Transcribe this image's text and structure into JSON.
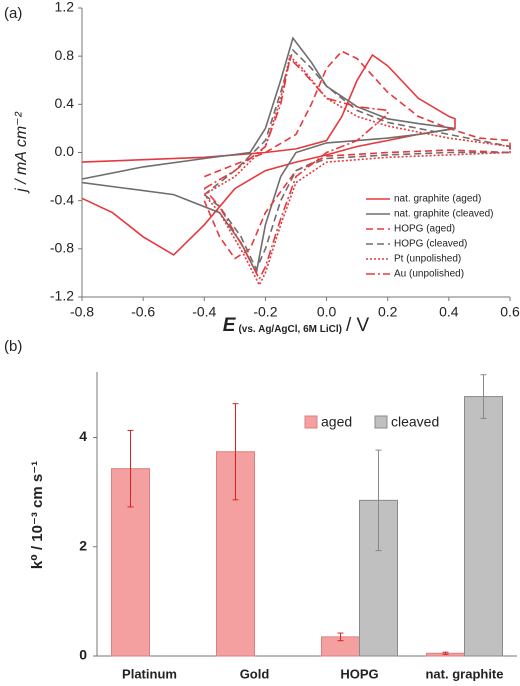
{
  "chart_data": [
    {
      "type": "line",
      "panel_label": "(a)",
      "ylabel": "j / mA cm⁻²",
      "xlabel": {
        "symbol": "E",
        "subscript": "(vs. Ag/AgCl, 6M LiCl)",
        "unit": "/ V"
      },
      "xlim": [
        -0.8,
        0.6
      ],
      "xticks": [
        -0.8,
        -0.6,
        -0.4,
        -0.2,
        {
          "value": 0,
          "label": "0.0"
        },
        0.2,
        0.4,
        0.6
      ],
      "ylim": [
        -1.2,
        1.2
      ],
      "yticks": [
        -1.2,
        -0.8,
        -0.4,
        {
          "value": 0,
          "label": "0.0"
        },
        0.4,
        0.8,
        1.2
      ],
      "legend": "lower right",
      "series": [
        {
          "name": "nat. graphite (aged)",
          "color": "#e8383d",
          "dash": "solid",
          "x": [
            -0.8,
            -0.6,
            -0.4,
            -0.2,
            -0.1,
            0,
            0.05,
            0.1,
            0.15,
            0.2,
            0.3,
            0.4,
            0.42,
            0.42,
            0.3,
            0.2,
            0.1,
            0,
            -0.1,
            -0.2,
            -0.3,
            -0.4,
            -0.5,
            -0.6,
            -0.7,
            -0.8
          ],
          "values": [
            -0.08,
            -0.06,
            -0.04,
            0.0,
            0.03,
            0.1,
            0.3,
            0.6,
            0.81,
            0.72,
            0.45,
            0.3,
            0.28,
            0.2,
            0.15,
            0.1,
            0.05,
            -0.02,
            -0.08,
            -0.15,
            -0.3,
            -0.6,
            -0.85,
            -0.7,
            -0.5,
            -0.38
          ]
        },
        {
          "name": "nat. graphite (cleaved)",
          "color": "#6e6e6e",
          "dash": "solid",
          "x": [
            -0.8,
            -0.6,
            -0.4,
            -0.25,
            -0.2,
            -0.15,
            -0.11,
            -0.05,
            0,
            0.1,
            0.2,
            0.3,
            0.42,
            0.42,
            0.3,
            0.2,
            0,
            -0.1,
            -0.15,
            -0.2,
            -0.23,
            -0.28,
            -0.35,
            -0.5,
            -0.8
          ],
          "values": [
            -0.22,
            -0.12,
            -0.05,
            0.0,
            0.2,
            0.6,
            0.95,
            0.75,
            0.55,
            0.38,
            0.28,
            0.24,
            0.2,
            0.2,
            0.15,
            0.12,
            0.08,
            0.0,
            -0.2,
            -0.6,
            -1.0,
            -0.75,
            -0.5,
            -0.35,
            -0.25
          ]
        },
        {
          "name": "HOPG (aged)",
          "color": "#e8383d",
          "dash": "dashed",
          "x": [
            -0.4,
            -0.3,
            -0.2,
            -0.1,
            -0.05,
            0,
            0.05,
            0.1,
            0.2,
            0.3,
            0.4,
            0.5,
            0.6,
            0.6,
            0.4,
            0.2,
            0,
            -0.1,
            -0.2,
            -0.25,
            -0.3,
            -0.35,
            -0.4
          ],
          "values": [
            -0.2,
            -0.1,
            0.0,
            0.15,
            0.4,
            0.7,
            0.84,
            0.78,
            0.5,
            0.3,
            0.2,
            0.12,
            0.1,
            0.0,
            0.02,
            0.0,
            -0.03,
            -0.15,
            -0.5,
            -0.8,
            -0.88,
            -0.7,
            -0.4
          ]
        },
        {
          "name": "HOPG (cleaved)",
          "color": "#6e6e6e",
          "dash": "dashed",
          "x": [
            -0.4,
            -0.3,
            -0.2,
            -0.15,
            -0.11,
            -0.05,
            0,
            0.1,
            0.2,
            0.4,
            0.6,
            0.6,
            0.4,
            0.2,
            0,
            -0.1,
            -0.15,
            -0.2,
            -0.23,
            -0.28,
            -0.35,
            -0.4
          ],
          "values": [
            -0.35,
            -0.15,
            0.1,
            0.5,
            0.85,
            0.7,
            0.55,
            0.35,
            0.25,
            0.15,
            0.05,
            0.0,
            0.0,
            -0.02,
            -0.05,
            -0.15,
            -0.4,
            -0.8,
            -0.97,
            -0.7,
            -0.45,
            -0.35
          ]
        },
        {
          "name": "Pt (unpolished)",
          "color": "#e8383d",
          "dash": "dotted",
          "x": [
            -0.4,
            -0.3,
            -0.2,
            -0.15,
            -0.12,
            -0.08,
            0,
            0.1,
            0.2,
            0.4,
            0.6,
            0.6,
            0.4,
            0.2,
            0,
            -0.1,
            -0.15,
            -0.2,
            -0.22,
            -0.27,
            -0.35,
            -0.4
          ],
          "values": [
            -0.35,
            -0.2,
            0.05,
            0.45,
            0.8,
            0.7,
            0.45,
            0.3,
            0.22,
            0.12,
            0.05,
            0.0,
            -0.02,
            -0.04,
            -0.08,
            -0.25,
            -0.6,
            -1.0,
            -1.1,
            -0.85,
            -0.5,
            -0.35
          ]
        },
        {
          "name": "Au (unpolished)",
          "color": "#e8383d",
          "dash": "dashdot",
          "x": [
            -0.4,
            -0.3,
            -0.2,
            -0.15,
            -0.12,
            -0.08,
            0,
            0.1,
            0.2,
            0.2,
            0.1,
            0,
            -0.1,
            -0.15,
            -0.2,
            -0.22,
            -0.27,
            -0.35,
            -0.4
          ],
          "values": [
            -0.3,
            -0.15,
            0.05,
            0.4,
            0.78,
            0.68,
            0.45,
            0.38,
            0.35,
            0.32,
            0.1,
            0.0,
            -0.2,
            -0.55,
            -0.95,
            -1.05,
            -0.8,
            -0.45,
            -0.3
          ]
        }
      ]
    },
    {
      "type": "bar",
      "panel_label": "(b)",
      "ylabel": "k⁰ / 10⁻³ cm s⁻¹",
      "categories": [
        "Platinum",
        "Gold",
        "HOPG",
        "nat. graphite"
      ],
      "ylim": [
        0,
        5.2
      ],
      "yticks": [
        0,
        2,
        4
      ],
      "legend": "upper right",
      "series": [
        {
          "name": "aged",
          "color": "#f4a0a0",
          "edgecolor": "#d98080",
          "error_color": "#e02020",
          "values": [
            3.43,
            3.74,
            0.35,
            0.05
          ],
          "errors": [
            0.7,
            0.88,
            0.07,
            0.02
          ]
        },
        {
          "name": "cleaved",
          "color": "#c0c0c0",
          "edgecolor": "#8a8a8a",
          "error_color": "#888888",
          "values": [
            null,
            null,
            2.85,
            4.75
          ],
          "errors": [
            null,
            null,
            0.92,
            0.4
          ]
        }
      ]
    }
  ]
}
